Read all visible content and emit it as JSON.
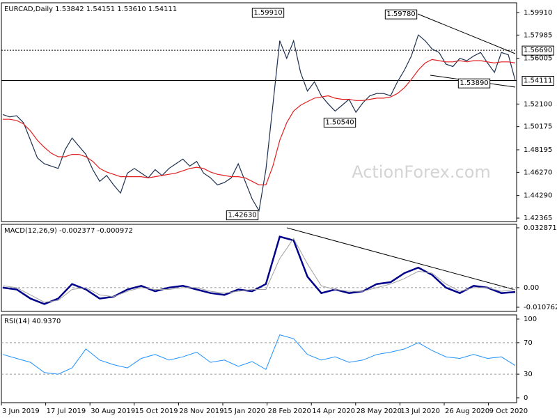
{
  "chart_data": [
    {
      "type": "line",
      "title": "EURCAD,Daily 1.53842 1.54151 1.53610 1.54111",
      "watermark": "ActionForex.com",
      "ylim": [
        1.4207,
        1.6074
      ],
      "yticks": [
        {
          "value": 1.5991,
          "label": "1.59910"
        },
        1.57985,
        1.56005,
        {
          "value": 1.521,
          "label": "1.52100"
        },
        1.50175,
        1.48195,
        {
          "value": 1.4627,
          "label": "1.46270"
        },
        {
          "value": 1.4429,
          "label": "1.44290"
        },
        1.42365
      ],
      "levels": [
        {
          "value": 1.5669,
          "label": "1.56690",
          "style": "dashed"
        },
        {
          "value": 1.54111,
          "label": "1.54111",
          "style": "solid"
        }
      ],
      "annotations": [
        {
          "value": 1.5991,
          "label": "1.59910"
        },
        {
          "value": 1.5978,
          "label": "1.59780"
        },
        {
          "value": 1.5389,
          "label": "1.53890"
        },
        {
          "value": 1.5054,
          "label": "1.50540"
        },
        {
          "value": 1.4263,
          "label": "1.42630"
        }
      ],
      "series": [
        {
          "color": "#1c2f4f",
          "values": [
            1.512,
            1.51,
            1.511,
            1.505,
            1.49,
            1.475,
            1.47,
            1.468,
            1.466,
            1.482,
            1.492,
            1.485,
            1.478,
            1.465,
            1.455,
            1.46,
            1.452,
            1.445,
            1.462,
            1.466,
            1.462,
            1.458,
            1.465,
            1.46,
            1.466,
            1.47,
            1.474,
            1.468,
            1.472,
            1.462,
            1.458,
            1.452,
            1.454,
            1.458,
            1.47,
            1.455,
            1.44,
            1.43,
            1.465,
            1.52,
            1.575,
            1.56,
            1.575,
            1.548,
            1.532,
            1.54,
            1.528,
            1.521,
            1.515,
            1.52,
            1.525,
            1.514,
            1.522,
            1.528,
            1.53,
            1.53,
            1.528,
            1.54,
            1.55,
            1.562,
            1.58,
            1.575,
            1.568,
            1.565,
            1.555,
            1.553,
            1.56,
            1.558,
            1.562,
            1.565,
            1.556,
            1.548,
            1.565,
            1.563,
            1.54111
          ]
        },
        {
          "color": "#e02020",
          "values": [
            1.508,
            1.508,
            1.507,
            1.504,
            1.498,
            1.49,
            1.484,
            1.479,
            1.476,
            1.476,
            1.478,
            1.478,
            1.476,
            1.472,
            1.466,
            1.463,
            1.461,
            1.459,
            1.459,
            1.459,
            1.459,
            1.458,
            1.459,
            1.46,
            1.461,
            1.462,
            1.464,
            1.466,
            1.467,
            1.466,
            1.463,
            1.461,
            1.46,
            1.459,
            1.459,
            1.458,
            1.455,
            1.452,
            1.452,
            1.468,
            1.49,
            1.505,
            1.515,
            1.52,
            1.523,
            1.526,
            1.527,
            1.528,
            1.526,
            1.525,
            1.525,
            1.524,
            1.524,
            1.525,
            1.526,
            1.526,
            1.527,
            1.53,
            1.535,
            1.542,
            1.55,
            1.556,
            1.559,
            1.558,
            1.557,
            1.557,
            1.558,
            1.557,
            1.558,
            1.558,
            1.557,
            1.556,
            1.557,
            1.557,
            1.556
          ]
        }
      ]
    },
    {
      "type": "line",
      "title": "MACD(12,26,9) -0.002377 -0.000972",
      "ylim": [
        -0.013058,
        0.034784
      ],
      "yticks": [
        0.032871,
        {
          "value": 0,
          "label": "0.00"
        },
        -0.010762
      ],
      "dashed_levels": [
        0
      ],
      "series": [
        {
          "color": "#00008b",
          "width": 2.5,
          "values": [
            0.0,
            -0.001,
            -0.006,
            -0.009,
            -0.006,
            0.002,
            -0.001,
            -0.006,
            -0.005,
            -0.001,
            0.001,
            -0.002,
            0.0,
            0.001,
            -0.001,
            -0.003,
            -0.004,
            -0.001,
            -0.002,
            0.002,
            0.028,
            0.026,
            0.006,
            -0.003,
            -0.001,
            -0.003,
            -0.002,
            0.002,
            0.003,
            0.008,
            0.011,
            0.007,
            0.0,
            -0.003,
            0.001,
            0.0,
            -0.003,
            -0.002377
          ]
        },
        {
          "color": "#a0a0a0",
          "width": 1,
          "values": [
            0.001,
            0.0,
            -0.004,
            -0.008,
            -0.007,
            -0.001,
            0.0,
            -0.004,
            -0.005,
            -0.002,
            0.0,
            -0.001,
            -0.001,
            0.0,
            0.0,
            -0.002,
            -0.003,
            -0.002,
            -0.001,
            -0.001,
            0.016,
            0.027,
            0.013,
            0.001,
            -0.001,
            -0.002,
            -0.002,
            0.0,
            0.002,
            0.005,
            0.009,
            0.008,
            0.002,
            -0.002,
            0.0,
            0.0,
            -0.002,
            -0.000972
          ]
        }
      ]
    },
    {
      "type": "line",
      "title": "RSI(14) 40.9370",
      "ylim": [
        -6.2,
        105.3
      ],
      "yticks": [
        100,
        70,
        30,
        0
      ],
      "dashed_levels": [
        70,
        30
      ],
      "x_labels": [
        "3 Jun 2019",
        "17 Jul 2019",
        "30 Aug 2019",
        "15 Oct 2019",
        "28 Nov 2019",
        "15 Jan 2020",
        "28 Feb 2020",
        "14 Apr 2020",
        "28 May 2020",
        "13 Jul 2020",
        "26 Aug 2020",
        "9 Oct 2020"
      ],
      "series": [
        {
          "color": "#1e90ff",
          "width": 1,
          "values": [
            55,
            50,
            45,
            32,
            30,
            38,
            62,
            48,
            42,
            38,
            50,
            55,
            48,
            52,
            58,
            45,
            48,
            40,
            46,
            36,
            80,
            75,
            55,
            48,
            52,
            45,
            48,
            55,
            58,
            62,
            70,
            60,
            52,
            50,
            55,
            50,
            52,
            40.937
          ]
        }
      ]
    }
  ]
}
